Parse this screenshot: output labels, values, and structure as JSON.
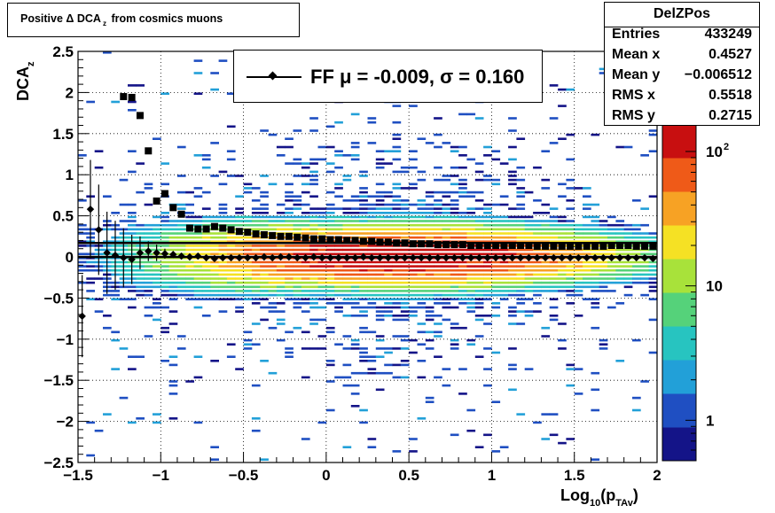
{
  "title": {
    "pre": "Positive ",
    "delta": "Δ",
    "dca": " DCA",
    "sub": "z",
    "post": " from cosmics muons"
  },
  "stats": {
    "name": "DelZPos",
    "rows": [
      {
        "label": "Entries",
        "value": "433249"
      },
      {
        "label": "Mean x",
        "value": "0.4527"
      },
      {
        "label": "Mean y",
        "value": "−0.006512"
      },
      {
        "label": "RMS x",
        "value": "0.5518"
      },
      {
        "label": "RMS y",
        "value": "0.2715"
      }
    ]
  },
  "legend": {
    "text": "FF μ = -0.009, σ =   0.160"
  },
  "axes": {
    "ylabel": {
      "main": "DCA",
      "sub": "z"
    },
    "xlabel": {
      "main": "Log",
      "sub1": "10",
      "mid": "(p",
      "sub2": "TAv",
      "end": ")"
    }
  },
  "colors": {
    "markers": "#000000",
    "palette": [
      "#141488",
      "#1f4fc2",
      "#22a0d8",
      "#27c4c0",
      "#55d27a",
      "#a8e23a",
      "#f5e124",
      "#f7a224",
      "#ef5a18",
      "#c80f10"
    ]
  },
  "chart_data": {
    "type": "heatmap",
    "xlim": [
      -1.5,
      2
    ],
    "ylim": [
      -2.5,
      2.5
    ],
    "x_ticks": [
      "−1.5",
      "−1",
      "−0.5",
      "0",
      "0.5",
      "1",
      "1.5",
      "2"
    ],
    "x_tick_values": [
      -1.5,
      -1,
      -0.5,
      0,
      0.5,
      1,
      1.5,
      2
    ],
    "y_ticks": [
      "2.5",
      "2",
      "1.5",
      "1",
      "0.5",
      "0",
      "−0.5",
      "−1",
      "−1.5",
      "−2",
      "−2.5"
    ],
    "y_tick_values": [
      2.5,
      2,
      1.5,
      1,
      0.5,
      0,
      -0.5,
      -1,
      -1.5,
      -2,
      -2.5
    ],
    "z_scale": "log",
    "z_range": [
      0.5,
      160
    ],
    "z_ticks": [
      {
        "value": 1,
        "label": "1"
      },
      {
        "value": 10,
        "label": "10"
      },
      {
        "value": 100,
        "label": "10",
        "sup": "2"
      }
    ],
    "grid": true,
    "density_model": {
      "mean_x": 0.4527,
      "rms_x": 0.5518,
      "rms_y": 0.2715,
      "entries": 433249
    },
    "mean_profile": {
      "marker": "diamond",
      "x": [
        -1.475,
        -1.425,
        -1.375,
        -1.325,
        -1.275,
        -1.225,
        -1.175,
        -1.125,
        -1.075,
        -1.025,
        -0.975,
        -0.925,
        -0.875,
        -0.825,
        -0.775,
        -0.725,
        -0.675,
        -0.625,
        -0.575,
        -0.525,
        -0.475,
        -0.425,
        -0.375,
        -0.325,
        -0.275,
        -0.225,
        -0.175,
        -0.125,
        -0.075,
        -0.025,
        0.025,
        0.075,
        0.125,
        0.175,
        0.225,
        0.275,
        0.325,
        0.375,
        0.425,
        0.475,
        0.525,
        0.575,
        0.625,
        0.675,
        0.725,
        0.775,
        0.825,
        0.875,
        0.925,
        0.975,
        1.025,
        1.075,
        1.125,
        1.175,
        1.225,
        1.275,
        1.325,
        1.375,
        1.425,
        1.475,
        1.525,
        1.575,
        1.625,
        1.675,
        1.725,
        1.775,
        1.825,
        1.875,
        1.925,
        1.975
      ],
      "y": [
        -0.72,
        0.58,
        0.33,
        0.05,
        0.02,
        -0.01,
        -0.03,
        0.05,
        0.07,
        0.05,
        0.04,
        0.03,
        0.01,
        0.0,
        0.01,
        -0.01,
        -0.02,
        -0.01,
        -0.01,
        -0.01,
        -0.01,
        -0.01,
        0.0,
        -0.01,
        0.0,
        0.0,
        -0.01,
        -0.01,
        0.0,
        -0.01,
        -0.01,
        -0.01,
        -0.01,
        -0.01,
        0.0,
        -0.01,
        -0.01,
        -0.01,
        -0.01,
        -0.01,
        -0.01,
        -0.01,
        -0.01,
        -0.01,
        -0.01,
        -0.01,
        -0.01,
        -0.01,
        -0.01,
        -0.01,
        -0.01,
        -0.01,
        -0.01,
        -0.01,
        -0.01,
        -0.01,
        -0.01,
        -0.01,
        -0.01,
        -0.01,
        -0.01,
        -0.01,
        -0.01,
        -0.01,
        -0.01,
        -0.01,
        -0.01,
        -0.01,
        -0.01,
        -0.02
      ],
      "err": [
        0.5,
        0.6,
        0.55,
        0.5,
        0.42,
        0.36,
        0.3,
        0.2,
        0.12,
        0.1,
        0.06,
        0.04,
        0.03,
        0.02,
        0.02,
        0.01,
        0.01,
        0.01,
        0.01,
        0.01,
        0.01,
        0.01,
        0.01,
        0.01,
        0.01,
        0.01,
        0.01,
        0.01,
        0.01,
        0.01,
        0.01,
        0.01,
        0.01,
        0.01,
        0.01,
        0.01,
        0.01,
        0.01,
        0.01,
        0.01,
        0.01,
        0.01,
        0.01,
        0.01,
        0.01,
        0.01,
        0.01,
        0.01,
        0.01,
        0.01,
        0.01,
        0.01,
        0.01,
        0.01,
        0.01,
        0.01,
        0.01,
        0.01,
        0.01,
        0.01,
        0.01,
        0.01,
        0.01,
        0.01,
        0.01,
        0.01,
        0.01,
        0.01,
        0.01,
        0.01
      ]
    },
    "rms_profile": {
      "marker": "square",
      "x": [
        -1.225,
        -1.175,
        -1.125,
        -1.075,
        -1.025,
        -0.975,
        -0.925,
        -0.875,
        -0.825,
        -0.775,
        -0.725,
        -0.675,
        -0.625,
        -0.575,
        -0.525,
        -0.475,
        -0.425,
        -0.375,
        -0.325,
        -0.275,
        -0.225,
        -0.175,
        -0.125,
        -0.075,
        -0.025,
        0.025,
        0.075,
        0.125,
        0.175,
        0.225,
        0.275,
        0.325,
        0.375,
        0.425,
        0.475,
        0.525,
        0.575,
        0.625,
        0.675,
        0.725,
        0.775,
        0.825,
        0.875,
        0.925,
        0.975,
        1.025,
        1.075,
        1.125,
        1.175,
        1.225,
        1.275,
        1.325,
        1.375,
        1.425,
        1.475,
        1.525,
        1.575,
        1.625,
        1.675,
        1.725,
        1.775,
        1.825,
        1.875,
        1.925,
        1.975
      ],
      "y": [
        1.95,
        1.94,
        1.72,
        1.29,
        0.68,
        0.77,
        0.6,
        0.52,
        0.35,
        0.34,
        0.34,
        0.37,
        0.35,
        0.33,
        0.31,
        0.3,
        0.28,
        0.27,
        0.26,
        0.25,
        0.25,
        0.24,
        0.23,
        0.22,
        0.22,
        0.21,
        0.21,
        0.2,
        0.2,
        0.19,
        0.19,
        0.18,
        0.18,
        0.17,
        0.17,
        0.16,
        0.16,
        0.16,
        0.15,
        0.15,
        0.15,
        0.15,
        0.14,
        0.14,
        0.14,
        0.14,
        0.14,
        0.14,
        0.14,
        0.14,
        0.13,
        0.13,
        0.13,
        0.13,
        0.13,
        0.13,
        0.13,
        0.13,
        0.13,
        0.14,
        0.14,
        0.14,
        0.13,
        0.13,
        0.13
      ]
    },
    "reference_lines": [
      0.17,
      0.0
    ]
  }
}
